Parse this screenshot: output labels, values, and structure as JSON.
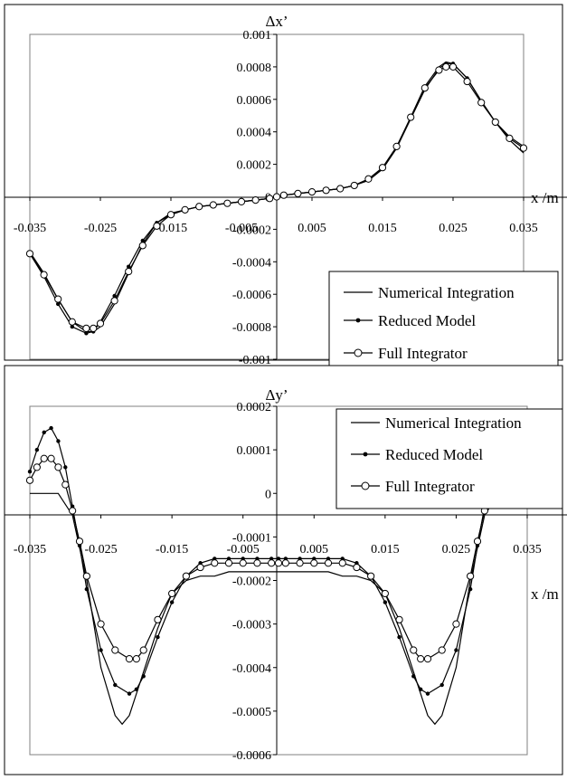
{
  "chart_data": [
    {
      "type": "line",
      "title": "",
      "ylabel": "Δx’",
      "xlabel": "x /m",
      "xlim": [
        -0.035,
        0.035
      ],
      "ylim": [
        -0.001,
        0.001
      ],
      "x_ticks": [
        "-0.035",
        "-0.025",
        "-0.015",
        "-0.005",
        "0.005",
        "0.015",
        "0.025",
        "0.035"
      ],
      "y_ticks": [
        "0.001",
        "0.0008",
        "0.0006",
        "0.0004",
        "0.0002",
        "0",
        "-0.0002",
        "-0.0004",
        "-0.0006",
        "-0.0008",
        "-0.001"
      ],
      "legend_position": "bottom-right",
      "colors": {
        "line": "#000000",
        "frame": "#808080"
      },
      "series": [
        {
          "name": "Numerical Integration",
          "marker": "none",
          "x": [
            -0.035,
            -0.033,
            -0.031,
            -0.029,
            -0.027,
            -0.026,
            -0.025,
            -0.023,
            -0.021,
            -0.019,
            -0.017,
            -0.015,
            -0.013,
            -0.011,
            -0.009,
            -0.007,
            -0.005,
            -0.003,
            -0.001,
            0.0,
            0.001,
            0.003,
            0.005,
            0.007,
            0.009,
            0.011,
            0.013,
            0.015,
            0.017,
            0.019,
            0.021,
            0.023,
            0.024,
            0.025,
            0.027,
            0.029,
            0.031,
            0.033,
            0.035
          ],
          "y": [
            -0.00034,
            -0.00047,
            -0.00063,
            -0.00077,
            -0.00083,
            -0.00083,
            -0.0008,
            -0.00066,
            -0.00047,
            -0.00029,
            -0.00016,
            -0.0001,
            -8e-05,
            -6e-05,
            -5e-05,
            -4e-05,
            -3e-05,
            -2e-05,
            -1e-05,
            0.0,
            1e-05,
            2e-05,
            3e-05,
            4e-05,
            5e-05,
            7e-05,
            0.0001,
            0.00017,
            0.0003,
            0.00049,
            0.00068,
            0.0008,
            0.00083,
            0.00082,
            0.00073,
            0.00059,
            0.00046,
            0.00035,
            0.00027
          ]
        },
        {
          "name": "Reduced Model",
          "marker": "filled-circle",
          "x": [
            -0.035,
            -0.033,
            -0.031,
            -0.029,
            -0.027,
            -0.026,
            -0.025,
            -0.023,
            -0.021,
            -0.019,
            -0.017,
            -0.015,
            -0.013,
            -0.011,
            -0.009,
            -0.007,
            -0.005,
            -0.003,
            -0.001,
            0.0,
            0.001,
            0.003,
            0.005,
            0.007,
            0.009,
            0.011,
            0.013,
            0.015,
            0.017,
            0.019,
            0.021,
            0.023,
            0.024,
            0.025,
            0.027,
            0.029,
            0.031,
            0.033,
            0.035
          ],
          "y": [
            -0.00035,
            -0.00049,
            -0.00066,
            -0.0008,
            -0.00084,
            -0.00083,
            -0.00077,
            -0.00061,
            -0.00043,
            -0.00027,
            -0.00016,
            -0.00011,
            -8e-05,
            -6e-05,
            -5e-05,
            -4e-05,
            -3e-05,
            -2e-05,
            -1e-05,
            0.0,
            1e-05,
            2e-05,
            3e-05,
            4e-05,
            5e-05,
            7e-05,
            0.00011,
            0.00017,
            0.0003,
            0.00048,
            0.00066,
            0.00079,
            0.00082,
            0.00082,
            0.00073,
            0.00059,
            0.00046,
            0.00037,
            0.00031
          ]
        },
        {
          "name": "Full Integrator",
          "marker": "open-circle",
          "x": [
            -0.035,
            -0.033,
            -0.031,
            -0.029,
            -0.027,
            -0.026,
            -0.025,
            -0.023,
            -0.021,
            -0.019,
            -0.017,
            -0.015,
            -0.013,
            -0.011,
            -0.009,
            -0.007,
            -0.005,
            -0.003,
            -0.001,
            0.0,
            0.001,
            0.003,
            0.005,
            0.007,
            0.009,
            0.011,
            0.013,
            0.015,
            0.017,
            0.019,
            0.021,
            0.023,
            0.024,
            0.025,
            0.027,
            0.029,
            0.031,
            0.033,
            0.035
          ],
          "y": [
            -0.00035,
            -0.00048,
            -0.00063,
            -0.00077,
            -0.00081,
            -0.00081,
            -0.00078,
            -0.00064,
            -0.00046,
            -0.0003,
            -0.00018,
            -0.00011,
            -8e-05,
            -6e-05,
            -5e-05,
            -4e-05,
            -3e-05,
            -2e-05,
            -1e-05,
            0.0,
            1e-05,
            2e-05,
            3e-05,
            4e-05,
            5e-05,
            7e-05,
            0.00011,
            0.00018,
            0.00031,
            0.00049,
            0.00067,
            0.00078,
            0.0008,
            0.0008,
            0.00071,
            0.00058,
            0.00046,
            0.00036,
            0.0003
          ]
        }
      ]
    },
    {
      "type": "line",
      "title": "",
      "ylabel": "Δy’",
      "xlabel": "x /m",
      "xlim": [
        -0.035,
        0.035
      ],
      "ylim": [
        -0.0006,
        0.0002
      ],
      "x_ticks": [
        "-0.035",
        "-0.025",
        "-0.015",
        "-0.005",
        "0.005",
        "0.015",
        "0.025",
        "0.035"
      ],
      "y_ticks": [
        "0.0002",
        "0.0001",
        "0",
        "-0.0001",
        "-0.0002",
        "-0.0003",
        "-0.0004",
        "-0.0005",
        "-0.0006"
      ],
      "legend_position": "top-right",
      "colors": {
        "line": "#000000",
        "frame": "#808080"
      },
      "series": [
        {
          "name": "Numerical Integration",
          "marker": "none",
          "x": [
            -0.035,
            -0.033,
            -0.031,
            -0.029,
            -0.027,
            -0.025,
            -0.023,
            -0.022,
            -0.021,
            -0.019,
            -0.017,
            -0.015,
            -0.013,
            -0.011,
            -0.009,
            -0.007,
            -0.005,
            -0.003,
            -0.001,
            0.0,
            0.001,
            0.003,
            0.005,
            0.007,
            0.009,
            0.011,
            0.013,
            0.015,
            0.017,
            0.019,
            0.021,
            0.022,
            0.023,
            0.025,
            0.027,
            0.029,
            0.031,
            0.033,
            0.035
          ],
          "y": [
            0.0,
            0.0,
            0.0,
            -5e-05,
            -0.0002,
            -0.0004,
            -0.00051,
            -0.00053,
            -0.00051,
            -0.00041,
            -0.00031,
            -0.00023,
            -0.0002,
            -0.00019,
            -0.00019,
            -0.00018,
            -0.00018,
            -0.00018,
            -0.00018,
            -0.00018,
            -0.00018,
            -0.00018,
            -0.00018,
            -0.00018,
            -0.00019,
            -0.00019,
            -0.0002,
            -0.00023,
            -0.00031,
            -0.00041,
            -0.00051,
            -0.00053,
            -0.00051,
            -0.0004,
            -0.0002,
            -5e-05,
            0.0,
            0.0,
            0.0
          ]
        },
        {
          "name": "Reduced Model",
          "marker": "filled-circle",
          "x": [
            -0.035,
            -0.034,
            -0.033,
            -0.032,
            -0.031,
            -0.03,
            -0.029,
            -0.028,
            -0.027,
            -0.025,
            -0.023,
            -0.021,
            -0.02,
            -0.019,
            -0.017,
            -0.015,
            -0.013,
            -0.011,
            -0.009,
            -0.007,
            -0.005,
            -0.003,
            -0.001,
            0.0,
            0.001,
            0.003,
            0.005,
            0.007,
            0.009,
            0.011,
            0.013,
            0.015,
            0.017,
            0.019,
            0.02,
            0.021,
            0.023,
            0.025,
            0.027,
            0.028,
            0.029,
            0.03,
            0.031,
            0.033,
            0.035
          ],
          "y": [
            5e-05,
            0.0001,
            0.00014,
            0.00015,
            0.00012,
            6e-05,
            -3e-05,
            -0.00012,
            -0.00022,
            -0.00036,
            -0.00044,
            -0.00046,
            -0.00045,
            -0.00042,
            -0.00033,
            -0.00025,
            -0.00019,
            -0.00016,
            -0.00015,
            -0.00015,
            -0.00015,
            -0.00015,
            -0.00015,
            -0.00015,
            -0.00015,
            -0.00015,
            -0.00015,
            -0.00015,
            -0.00015,
            -0.00016,
            -0.00019,
            -0.00025,
            -0.00033,
            -0.00042,
            -0.00045,
            -0.00046,
            -0.00044,
            -0.00036,
            -0.00022,
            -0.00012,
            -3e-05,
            6e-05,
            0.00012,
            0.0001,
            5e-05
          ]
        },
        {
          "name": "Full Integrator",
          "marker": "open-circle",
          "x": [
            -0.035,
            -0.034,
            -0.033,
            -0.032,
            -0.031,
            -0.03,
            -0.029,
            -0.028,
            -0.027,
            -0.025,
            -0.023,
            -0.021,
            -0.02,
            -0.019,
            -0.017,
            -0.015,
            -0.013,
            -0.011,
            -0.009,
            -0.007,
            -0.005,
            -0.003,
            -0.001,
            0.0,
            0.001,
            0.003,
            0.005,
            0.007,
            0.009,
            0.011,
            0.013,
            0.015,
            0.017,
            0.019,
            0.02,
            0.021,
            0.023,
            0.025,
            0.027,
            0.028,
            0.029,
            0.03,
            0.031,
            0.033,
            0.035
          ],
          "y": [
            3e-05,
            6e-05,
            8e-05,
            8e-05,
            6e-05,
            2e-05,
            -4e-05,
            -0.00011,
            -0.00019,
            -0.0003,
            -0.00036,
            -0.00038,
            -0.00038,
            -0.00036,
            -0.00029,
            -0.00023,
            -0.00019,
            -0.00017,
            -0.00016,
            -0.00016,
            -0.00016,
            -0.00016,
            -0.00016,
            -0.00016,
            -0.00016,
            -0.00016,
            -0.00016,
            -0.00016,
            -0.00016,
            -0.00017,
            -0.00019,
            -0.00023,
            -0.00029,
            -0.00036,
            -0.00038,
            -0.00038,
            -0.00036,
            -0.0003,
            -0.00019,
            -0.00011,
            -4e-05,
            2e-05,
            6e-05,
            4e-05,
            2e-05
          ]
        }
      ]
    }
  ]
}
